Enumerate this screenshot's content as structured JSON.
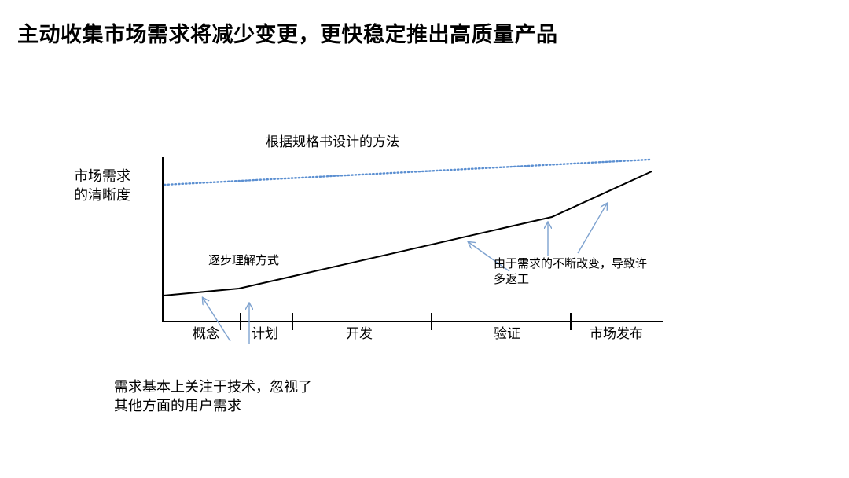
{
  "slide": {
    "title": "主动收集市场需求将减少变更，更快稳定推出高质量产品"
  },
  "diagram": {
    "title": "根据规格书设计的方法",
    "y_axis_label_line1": "市场需求",
    "y_axis_label_line2": "的清晰度",
    "curve_label": "逐步理解方式",
    "change_note_line1": "由于需求的不断改变，导致许",
    "change_note_line2": "多返工",
    "phases": [
      "概念",
      "计划",
      "开发",
      "验证",
      "市场发布"
    ],
    "bottom_note_line1": "需求基本上关注于技术，忽视了",
    "bottom_note_line2": "其他方面的用户需求",
    "colors": {
      "axis": "#000000",
      "solid_curve": "#000000",
      "dotted_line": "#5b8fd1",
      "arrow": "#7ea2cf"
    }
  }
}
